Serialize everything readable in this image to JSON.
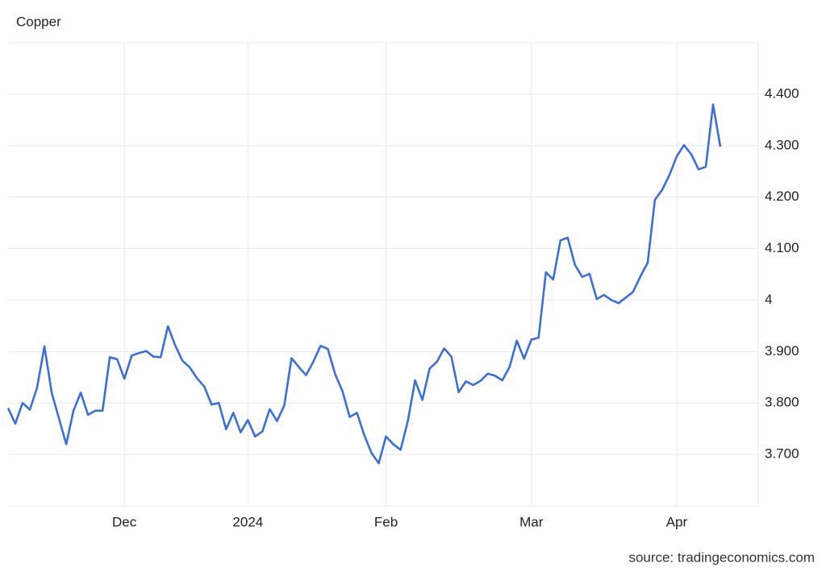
{
  "chart_data": {
    "type": "line",
    "title": "Copper",
    "source": "source: tradingeconomics.com",
    "categories": [
      null,
      null,
      null,
      null,
      null,
      null,
      null,
      null,
      null,
      null,
      null,
      null,
      null,
      null,
      null,
      null,
      "Dec",
      null,
      null,
      null,
      null,
      null,
      null,
      null,
      null,
      null,
      null,
      null,
      null,
      null,
      null,
      null,
      null,
      "2024",
      null,
      null,
      null,
      null,
      null,
      null,
      null,
      null,
      null,
      null,
      null,
      null,
      null,
      null,
      null,
      null,
      null,
      null,
      "Feb",
      null,
      null,
      null,
      null,
      null,
      null,
      null,
      null,
      null,
      null,
      null,
      null,
      null,
      null,
      null,
      null,
      null,
      null,
      null,
      "Mar",
      null,
      null,
      null,
      null,
      null,
      null,
      null,
      null,
      null,
      null,
      null,
      null,
      null,
      null,
      null,
      null,
      null,
      null,
      null,
      "Apr",
      null,
      null,
      null,
      null,
      null,
      null
    ],
    "values": [
      3.79,
      3.76,
      3.8,
      3.787,
      3.83,
      3.91,
      3.82,
      3.77,
      3.72,
      3.785,
      3.82,
      3.777,
      3.785,
      3.785,
      3.889,
      3.885,
      3.847,
      3.892,
      3.897,
      3.901,
      3.89,
      3.889,
      3.949,
      3.912,
      3.882,
      3.869,
      3.848,
      3.832,
      3.797,
      3.8,
      3.749,
      3.781,
      3.743,
      3.767,
      3.735,
      3.745,
      3.788,
      3.765,
      3.795,
      3.887,
      3.87,
      3.854,
      3.88,
      3.911,
      3.905,
      3.856,
      3.823,
      3.773,
      3.781,
      3.738,
      3.703,
      3.683,
      3.735,
      3.72,
      3.709,
      3.765,
      3.844,
      3.806,
      3.867,
      3.88,
      3.906,
      3.89,
      3.821,
      3.842,
      3.835,
      3.843,
      3.857,
      3.853,
      3.844,
      3.87,
      3.921,
      3.886,
      3.923,
      3.927,
      4.054,
      4.04,
      4.116,
      4.121,
      4.068,
      4.045,
      4.051,
      4.002,
      4.01,
      4.0,
      3.994,
      4.005,
      4.016,
      4.046,
      4.072,
      4.195,
      4.214,
      4.243,
      4.279,
      4.301,
      4.283,
      4.254,
      4.259,
      4.38,
      4.298
    ],
    "color": "#3a6fd8",
    "ylim": [
      3.6,
      4.5
    ],
    "yticks": [
      {
        "value": 3.7,
        "label": "3.700"
      },
      {
        "value": 3.8,
        "label": "3.800"
      },
      {
        "value": 3.9,
        "label": "3.900"
      },
      4,
      {
        "value": 4.1,
        "label": "4.100"
      },
      {
        "value": 4.2,
        "label": "4.200"
      },
      {
        "value": 4.3,
        "label": "4.300"
      },
      {
        "value": 4.4,
        "label": "4.400"
      }
    ],
    "grid": true
  }
}
